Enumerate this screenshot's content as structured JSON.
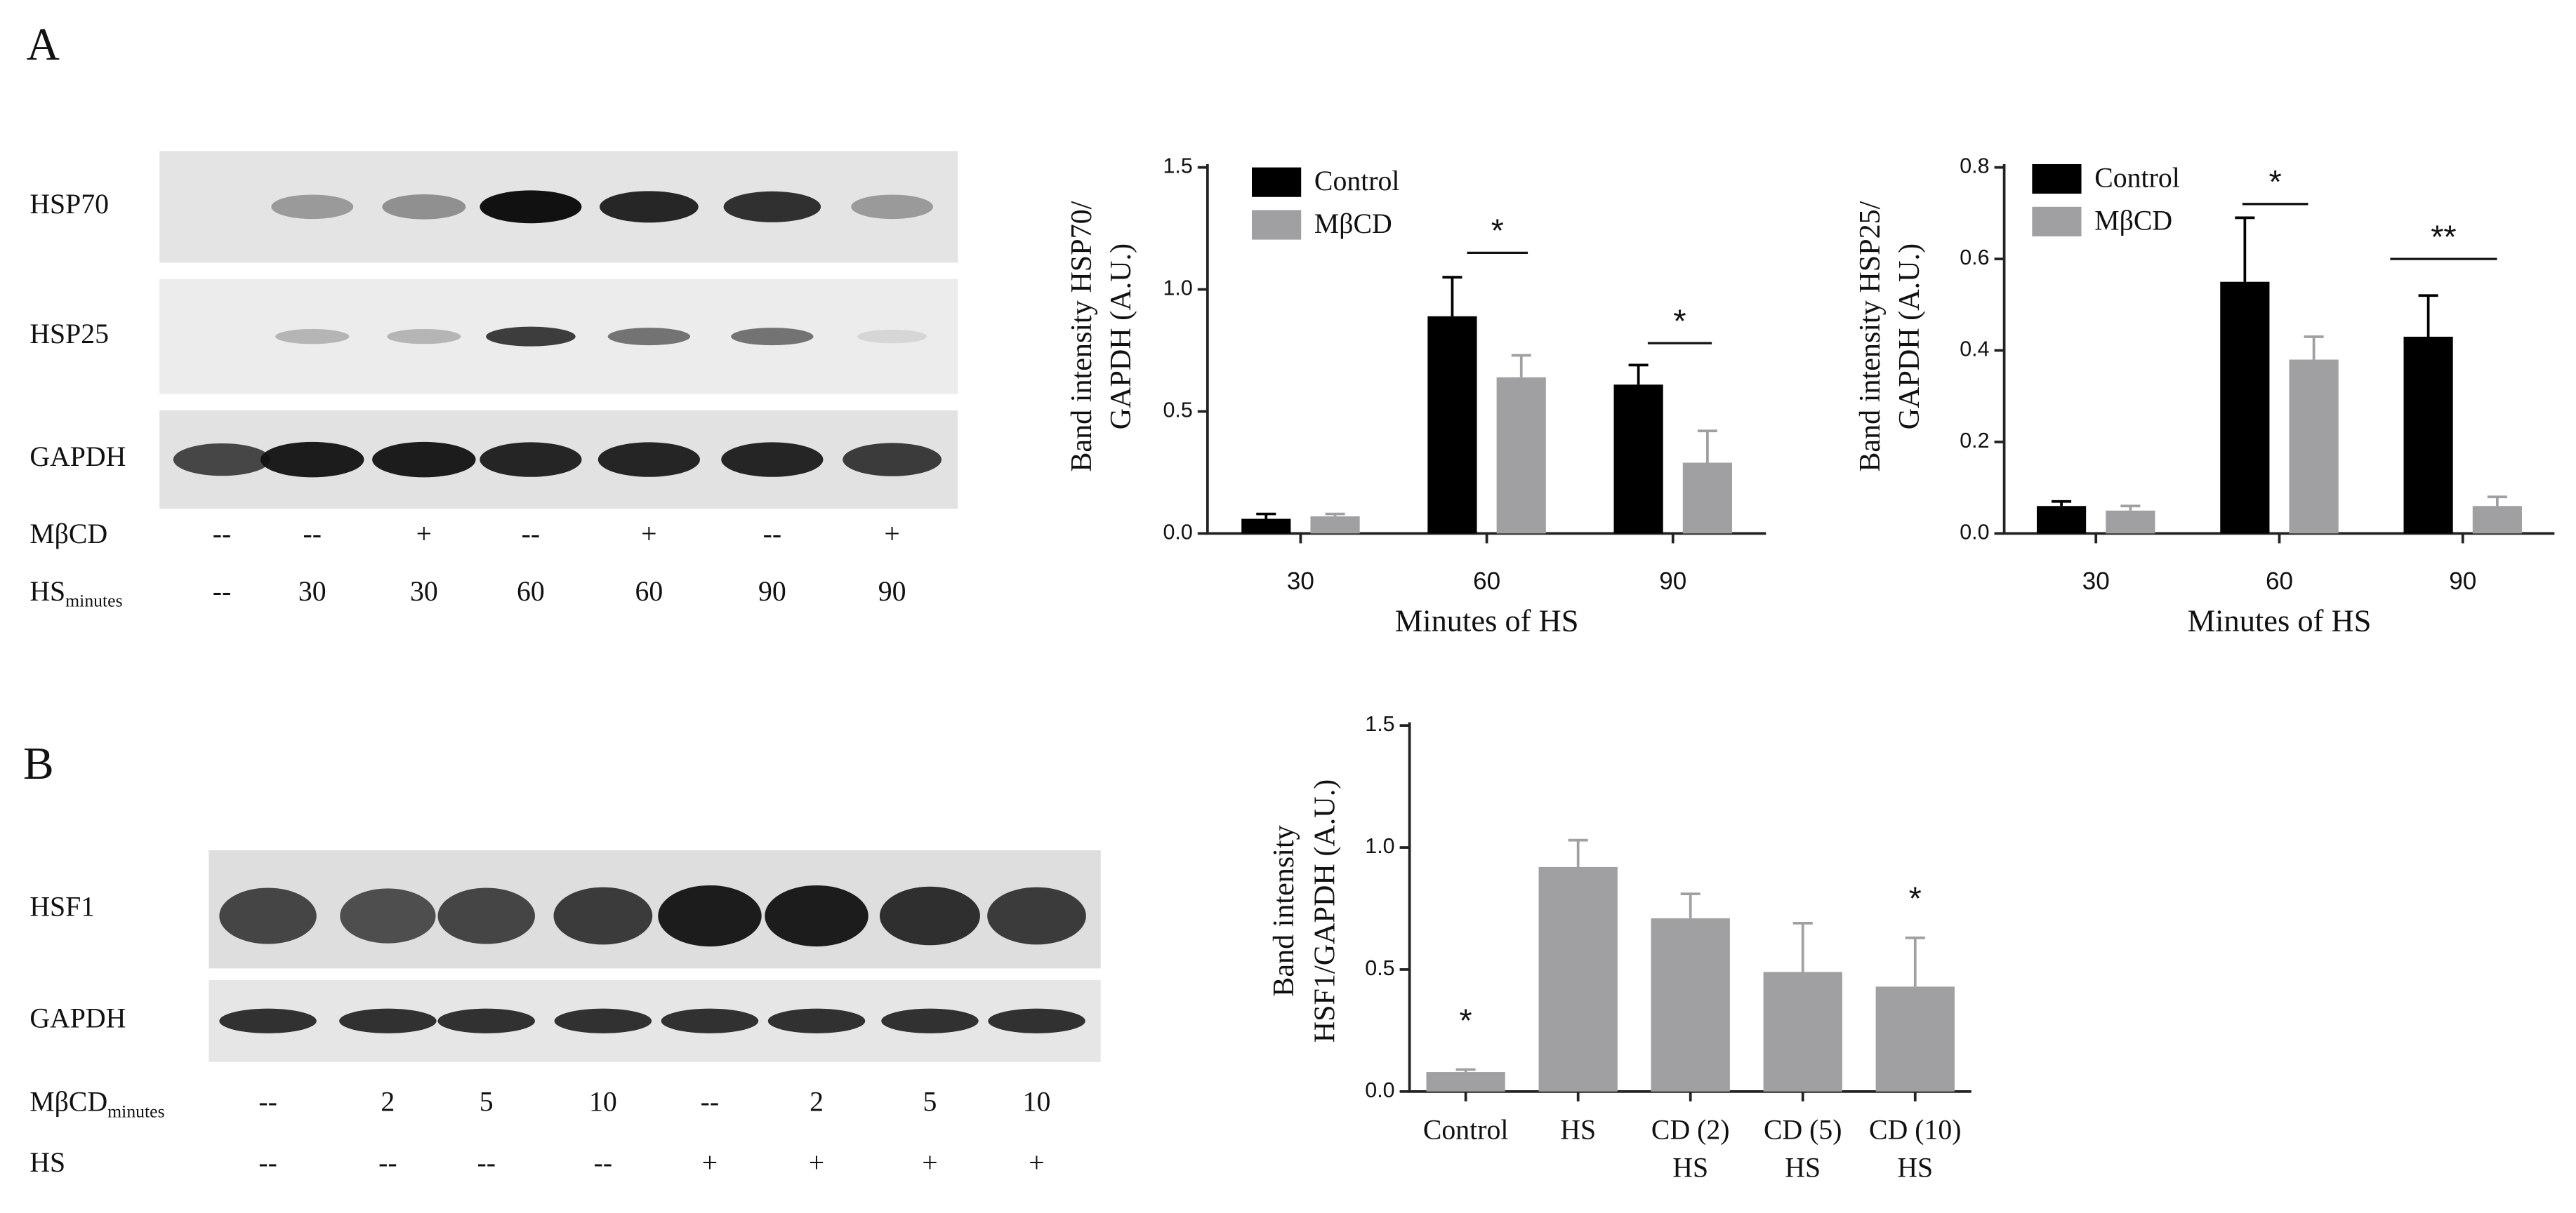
{
  "panels": [
    "A",
    "B"
  ],
  "blots": [
    {
      "rows": [
        "HSP70",
        "HSP25",
        "GAPDH"
      ],
      "conditions": [
        {
          "label": "MβCD",
          "values": [
            "--",
            "--",
            "+",
            "--",
            "+",
            "--",
            "+"
          ]
        },
        {
          "label": "HS",
          "sub": "minutes",
          "values": [
            "--",
            "30",
            "30",
            "60",
            "60",
            "90",
            "90"
          ]
        }
      ]
    },
    {
      "rows": [
        "HSF1",
        "GAPDH"
      ],
      "conditions": [
        {
          "label": "MβCD",
          "sub": "minutes",
          "values": [
            "--",
            "2",
            "5",
            "10",
            "--",
            "2",
            "5",
            "10"
          ]
        },
        {
          "label": "HS",
          "values": [
            "--",
            "--",
            "--",
            "--",
            "+",
            "+",
            "+",
            "+"
          ]
        }
      ]
    }
  ],
  "chart_data": [
    {
      "type": "bar",
      "ylabel": [
        "Band intensity HSP70/",
        "GAPDH (A.U.)"
      ],
      "xlabel": "Minutes of HS",
      "categories": [
        "30",
        "60",
        "90"
      ],
      "series": [
        {
          "name": "Control",
          "color": "#000000",
          "values": [
            0.06,
            0.89,
            0.61
          ],
          "errors": [
            0.02,
            0.16,
            0.08
          ]
        },
        {
          "name": "MβCD",
          "color": "#a0a0a2",
          "values": [
            0.07,
            0.64,
            0.29
          ],
          "errors": [
            0.01,
            0.09,
            0.13
          ]
        }
      ],
      "ylim": [
        0,
        1.5
      ],
      "yticks": [
        {
          "value": 0,
          "label": "0.0"
        },
        0.5,
        {
          "value": 1,
          "label": "1.0"
        },
        1.5
      ],
      "annotations": [
        "*",
        "*"
      ],
      "legend": "upper left"
    },
    {
      "type": "bar",
      "ylabel": [
        "Band intensity HSP25/",
        "GAPDH (A.U.)"
      ],
      "xlabel": "Minutes of HS",
      "categories": [
        "30",
        "60",
        "90"
      ],
      "series": [
        {
          "name": "Control",
          "color": "#000000",
          "values": [
            0.06,
            0.55,
            0.43
          ],
          "errors": [
            0.01,
            0.14,
            0.09
          ]
        },
        {
          "name": "MβCD",
          "color": "#a0a0a2",
          "values": [
            0.05,
            0.38,
            0.06
          ],
          "errors": [
            0.01,
            0.05,
            0.02
          ]
        }
      ],
      "ylim": [
        0,
        0.8
      ],
      "yticks": [
        {
          "value": 0,
          "label": "0.0"
        },
        0.2,
        0.4,
        0.6,
        0.8
      ],
      "annotations": [
        "*",
        "**"
      ],
      "legend": "upper left"
    },
    {
      "type": "bar",
      "ylabel": [
        "Band intensity",
        "HSF1/GAPDH (A.U.)"
      ],
      "categories": [
        [
          "Control"
        ],
        [
          "HS"
        ],
        [
          "CD (2)",
          "HS"
        ],
        [
          "CD (5)",
          "HS"
        ],
        [
          "CD (10)",
          "HS"
        ]
      ],
      "values": [
        0.08,
        0.92,
        0.71,
        0.49,
        0.43
      ],
      "errors": [
        0.01,
        0.11,
        0.1,
        0.2,
        0.2
      ],
      "color": "#a0a0a2",
      "ylim": [
        0,
        1.5
      ],
      "yticks": [
        {
          "value": 0,
          "label": "0.0"
        },
        0.5,
        {
          "value": 1,
          "label": "1.0"
        },
        1.5
      ],
      "annotations": [
        "*",
        "*"
      ]
    }
  ]
}
